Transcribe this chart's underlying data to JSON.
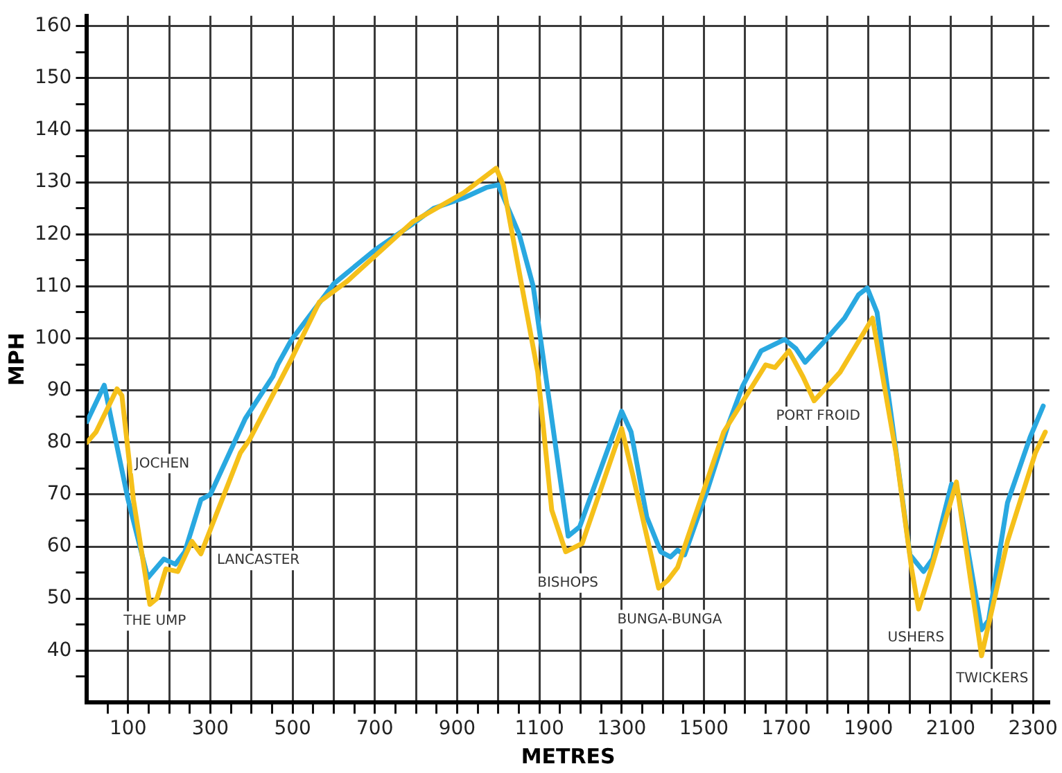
{
  "chart_data": {
    "type": "line",
    "xlabel": "METRES",
    "ylabel": "MPH",
    "xlim": [
      0,
      2340
    ],
    "ylim": [
      30,
      162
    ],
    "xticks": [
      {
        "value": 50,
        "label": null
      },
      {
        "value": 100,
        "label": "100"
      },
      {
        "value": 150,
        "label": null
      },
      {
        "value": 200,
        "label": null
      },
      {
        "value": 250,
        "label": null
      },
      {
        "value": 300,
        "label": "300"
      },
      {
        "value": 350,
        "label": null
      },
      {
        "value": 400,
        "label": null
      },
      {
        "value": 450,
        "label": null
      },
      {
        "value": 500,
        "label": "500"
      },
      {
        "value": 550,
        "label": null
      },
      {
        "value": 600,
        "label": null
      },
      {
        "value": 650,
        "label": null
      },
      {
        "value": 700,
        "label": "700"
      },
      {
        "value": 750,
        "label": null
      },
      {
        "value": 800,
        "label": null
      },
      {
        "value": 850,
        "label": null
      },
      {
        "value": 900,
        "label": "900"
      },
      {
        "value": 950,
        "label": null
      },
      {
        "value": 1000,
        "label": null
      },
      {
        "value": 1050,
        "label": null
      },
      {
        "value": 1100,
        "label": "1100"
      },
      {
        "value": 1150,
        "label": null
      },
      {
        "value": 1200,
        "label": null
      },
      {
        "value": 1250,
        "label": null
      },
      {
        "value": 1300,
        "label": "1300"
      },
      {
        "value": 1350,
        "label": null
      },
      {
        "value": 1400,
        "label": null
      },
      {
        "value": 1450,
        "label": null
      },
      {
        "value": 1500,
        "label": "1500"
      },
      {
        "value": 1550,
        "label": null
      },
      {
        "value": 1600,
        "label": null
      },
      {
        "value": 1650,
        "label": null
      },
      {
        "value": 1700,
        "label": "1700"
      },
      {
        "value": 1750,
        "label": null
      },
      {
        "value": 1800,
        "label": null
      },
      {
        "value": 1850,
        "label": null
      },
      {
        "value": 1900,
        "label": "1900"
      },
      {
        "value": 1950,
        "label": null
      },
      {
        "value": 2000,
        "label": null
      },
      {
        "value": 2050,
        "label": null
      },
      {
        "value": 2100,
        "label": "2100"
      },
      {
        "value": 2150,
        "label": null
      },
      {
        "value": 2200,
        "label": null
      },
      {
        "value": 2250,
        "label": null
      },
      {
        "value": 2300,
        "label": "2300"
      }
    ],
    "yticks": [
      {
        "value": 35,
        "label": null
      },
      40,
      {
        "value": 45,
        "label": null
      },
      50,
      {
        "value": 55,
        "label": null
      },
      60,
      {
        "value": 65,
        "label": null
      },
      70,
      {
        "value": 75,
        "label": null
      },
      80,
      {
        "value": 85,
        "label": null
      },
      90,
      {
        "value": 95,
        "label": null
      },
      100,
      {
        "value": 105,
        "label": null
      },
      110,
      {
        "value": 115,
        "label": null
      },
      120,
      {
        "value": 125,
        "label": null
      },
      130,
      {
        "value": 135,
        "label": null
      },
      140,
      {
        "value": 145,
        "label": null
      },
      150,
      {
        "value": 155,
        "label": null
      },
      160
    ],
    "grid": true,
    "marker": "none",
    "line_style": "solid",
    "series": [
      {
        "color": "#f5c01a",
        "x": [
          0,
          22,
          73,
          85,
          113,
          153,
          170,
          192,
          221,
          255,
          277,
          373,
          395,
          497,
          565,
          633,
          792,
          916,
          995,
          1012,
          1096,
          1130,
          1164,
          1204,
          1300,
          1327,
          1390,
          1412,
          1436,
          1548,
          1650,
          1673,
          1707,
          1741,
          1768,
          1831,
          1910,
          1967,
          2005,
          2022,
          2056,
          2114,
          2175,
          2238,
          2306,
          2330
        ],
        "values": [
          80,
          82,
          90.3,
          89,
          69,
          48.9,
          50,
          55.7,
          55.2,
          61,
          58.6,
          78,
          80.5,
          96,
          107,
          111,
          122.4,
          128,
          132.7,
          129.5,
          93.5,
          67,
          59,
          60.6,
          82.7,
          73.8,
          52,
          53.5,
          56,
          82,
          94.9,
          94.4,
          97.6,
          92.6,
          88,
          93.5,
          103.9,
          78,
          55.7,
          48,
          56.6,
          72.4,
          39,
          61,
          78,
          82
        ]
      },
      {
        "color": "#29a8e0",
        "x": [
          0,
          42,
          100,
          148,
          187,
          215,
          238,
          277,
          300,
          385,
          452,
          464,
          497,
          600,
          700,
          792,
          843,
          916,
          971,
          1000,
          1051,
          1085,
          1170,
          1198,
          1277,
          1300,
          1323,
          1361,
          1395,
          1419,
          1436,
          1453,
          1509,
          1560,
          1594,
          1639,
          1696,
          1724,
          1746,
          1797,
          1842,
          1876,
          1897,
          1921,
          1955,
          2001,
          2034,
          2056,
          2102,
          2119,
          2175,
          2192,
          2238,
          2293,
          2325
        ],
        "values": [
          84,
          91,
          69,
          54,
          57.6,
          56.6,
          59,
          69,
          70,
          84.6,
          92.7,
          95,
          99.7,
          110.5,
          117,
          122,
          125,
          127,
          129,
          129.5,
          120,
          110,
          62,
          63.8,
          81,
          86,
          82,
          65.7,
          59,
          58,
          59.3,
          58.4,
          71,
          83.6,
          90.8,
          97.6,
          99.8,
          98,
          95.4,
          99.8,
          103.9,
          108.4,
          109.7,
          105,
          85.4,
          58.4,
          55.2,
          57.6,
          72,
          70,
          44,
          45.8,
          68.4,
          81,
          87
        ]
      }
    ],
    "annotations": [
      "JOCHEN",
      "THE UMP",
      "LANCASTER",
      "BISHOPS",
      "BUNGA-BUNGA",
      "PORT FROID",
      "USHERS",
      "TWICKERS"
    ]
  }
}
